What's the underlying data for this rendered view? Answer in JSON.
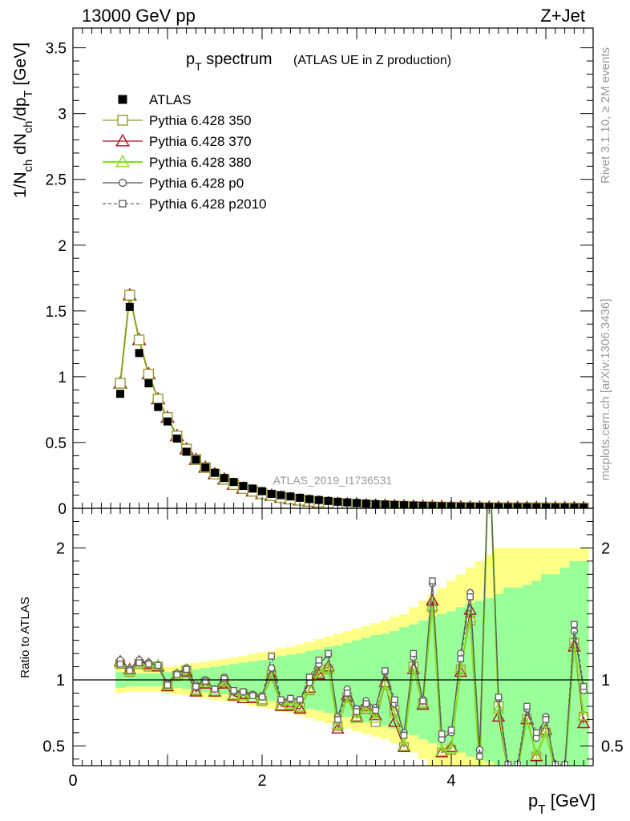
{
  "header": {
    "energy_label": "13000 GeV pp",
    "process_label": "Z+Jet",
    "rivet_label": "Rivet 3.1.10, ≥ 2M events",
    "mcplots_label": "mcplots.cern.ch [arXiv:1306.3436]",
    "analysis_label": "ATLAS_2019_I1736531"
  },
  "colors": {
    "atlas": "#000000",
    "py350": "#999933",
    "py370": "#aa1122",
    "py380": "#88dd22",
    "pyp0": "#555555",
    "pyp2010": "#666666",
    "band_inner": "#99ff99",
    "band_outer": "#ffff88"
  },
  "chart_data": [
    {
      "type": "scatter",
      "title_main": "p_T spectrum",
      "title_sub": "(ATLAS UE in Z production)",
      "ylabel": "1/N_ch dN_ch/dp_T [GeV]",
      "xlim": [
        0,
        5.5
      ],
      "ylim": [
        0,
        3.65
      ],
      "yticks": [
        0,
        0.5,
        1,
        1.5,
        2,
        2.5,
        3,
        3.5
      ],
      "legend_position": "top-left",
      "x": [
        0.5,
        0.6,
        0.7,
        0.8,
        0.9,
        1.0,
        1.1,
        1.2,
        1.3,
        1.4,
        1.5,
        1.6,
        1.7,
        1.8,
        1.9,
        2.0,
        2.1,
        2.2,
        2.3,
        2.4,
        2.5,
        2.6,
        2.7,
        2.8,
        2.9,
        3.0,
        3.1,
        3.2,
        3.3,
        3.4,
        3.5,
        3.6,
        3.7,
        3.8,
        3.9,
        4.0,
        4.1,
        4.2,
        4.3,
        4.4,
        4.5,
        4.6,
        4.7,
        4.8,
        4.9,
        5.0,
        5.1,
        5.2,
        5.3,
        5.4
      ],
      "series": [
        {
          "name": "ATLAS",
          "values": [
            0.87,
            1.53,
            1.18,
            0.95,
            0.77,
            0.66,
            0.53,
            0.43,
            0.37,
            0.31,
            0.27,
            0.23,
            0.2,
            0.17,
            0.15,
            0.13,
            0.11,
            0.1,
            0.09,
            0.08,
            0.07,
            0.063,
            0.056,
            0.05,
            0.045,
            0.04,
            0.036,
            0.032,
            0.029,
            0.026,
            0.023,
            0.021,
            0.019,
            0.017,
            0.016,
            0.014,
            0.013,
            0.012,
            0.011,
            0.01,
            0.009,
            0.0085,
            0.008,
            0.0075,
            0.007,
            0.0065,
            0.006,
            0.0055,
            0.005,
            0.0048
          ]
        },
        {
          "name": "Pythia 6.428 350",
          "values": [
            0.95,
            1.62,
            1.28,
            1.02,
            0.83,
            0.69,
            0.55,
            0.45,
            0.37,
            0.31,
            0.26,
            0.22,
            0.18,
            0.15,
            0.13,
            0.11,
            0.096,
            0.082,
            0.07,
            0.061,
            0.053,
            0.046,
            0.04,
            0.035,
            0.031,
            0.027,
            0.024,
            0.021,
            0.019,
            0.017,
            0.015,
            0.013,
            0.012,
            0.011,
            0.0095,
            0.0085,
            0.0076,
            0.0068,
            0.0061,
            0.0055,
            0.005,
            0.0045,
            0.004,
            0.0036,
            0.0033,
            0.003,
            0.0027,
            0.0025,
            0.0022,
            0.002
          ]
        },
        {
          "name": "Pythia 6.428 370",
          "values": [
            0.95,
            1.62,
            1.28,
            1.02,
            0.83,
            0.69,
            0.55,
            0.45,
            0.37,
            0.31,
            0.26,
            0.22,
            0.18,
            0.15,
            0.13,
            0.11,
            0.096,
            0.082,
            0.07,
            0.061,
            0.053,
            0.046,
            0.04,
            0.035,
            0.031,
            0.027,
            0.024,
            0.021,
            0.019,
            0.017,
            0.015,
            0.013,
            0.012,
            0.011,
            0.0095,
            0.0085,
            0.0076,
            0.0068,
            0.0061,
            0.0055,
            0.005,
            0.0045,
            0.004,
            0.0036,
            0.0033,
            0.003,
            0.0027,
            0.0025,
            0.0022,
            0.002
          ]
        },
        {
          "name": "Pythia 6.428 380",
          "values": [
            0.95,
            1.62,
            1.28,
            1.02,
            0.83,
            0.69,
            0.55,
            0.45,
            0.37,
            0.31,
            0.26,
            0.22,
            0.18,
            0.15,
            0.13,
            0.11,
            0.096,
            0.082,
            0.07,
            0.061,
            0.053,
            0.046,
            0.04,
            0.035,
            0.031,
            0.027,
            0.024,
            0.021,
            0.019,
            0.017,
            0.015,
            0.013,
            0.012,
            0.011,
            0.0095,
            0.0085,
            0.0076,
            0.0068,
            0.0061,
            0.0055,
            0.005,
            0.0045,
            0.004,
            0.0036,
            0.0033,
            0.003,
            0.0027,
            0.0025,
            0.0022,
            0.002
          ]
        },
        {
          "name": "Pythia 6.428 p0",
          "values": [
            0.95,
            1.62,
            1.28,
            1.02,
            0.83,
            0.69,
            0.55,
            0.45,
            0.37,
            0.31,
            0.26,
            0.22,
            0.18,
            0.15,
            0.13,
            0.11,
            0.096,
            0.082,
            0.07,
            0.061,
            0.053,
            0.046,
            0.04,
            0.035,
            0.031,
            0.027,
            0.024,
            0.021,
            0.019,
            0.017,
            0.015,
            0.013,
            0.012,
            0.011,
            0.0095,
            0.0085,
            0.0076,
            0.0068,
            0.0061,
            0.0055,
            0.005,
            0.0045,
            0.004,
            0.0036,
            0.0033,
            0.003,
            0.0027,
            0.0025,
            0.0022,
            0.002
          ]
        },
        {
          "name": "Pythia 6.428 p2010",
          "values": [
            0.95,
            1.62,
            1.28,
            1.02,
            0.83,
            0.69,
            0.55,
            0.45,
            0.37,
            0.31,
            0.26,
            0.22,
            0.18,
            0.15,
            0.13,
            0.11,
            0.096,
            0.082,
            0.07,
            0.061,
            0.053,
            0.046,
            0.04,
            0.035,
            0.031,
            0.027,
            0.024,
            0.021,
            0.019,
            0.017,
            0.015,
            0.013,
            0.012,
            0.011,
            0.0095,
            0.0085,
            0.0076,
            0.0068,
            0.0061,
            0.0055,
            0.005,
            0.0045,
            0.004,
            0.0036,
            0.0033,
            0.003,
            0.0027,
            0.0025,
            0.0022,
            0.002
          ]
        }
      ]
    },
    {
      "type": "line",
      "ylabel": "Ratio to ATLAS",
      "xlabel": "p_T [GeV]",
      "xlim": [
        0,
        5.5
      ],
      "ylim": [
        0.35,
        2.3
      ],
      "xticks": [
        0,
        2,
        4
      ],
      "yticks": [
        0.5,
        1,
        2
      ],
      "x": [
        0.5,
        0.6,
        0.7,
        0.8,
        0.9,
        1.0,
        1.1,
        1.2,
        1.3,
        1.4,
        1.5,
        1.6,
        1.7,
        1.8,
        1.9,
        2.0,
        2.1,
        2.2,
        2.3,
        2.4,
        2.5,
        2.6,
        2.7,
        2.8,
        2.9,
        3.0,
        3.1,
        3.2,
        3.3,
        3.4,
        3.5,
        3.6,
        3.7,
        3.8,
        3.9,
        4.0,
        4.1,
        4.2,
        4.3,
        4.4,
        4.5,
        4.6,
        4.7,
        4.8,
        4.9,
        5.0,
        5.1,
        5.2,
        5.3,
        5.4
      ],
      "band_inner": [
        0.06,
        0.05,
        0.05,
        0.05,
        0.05,
        0.06,
        0.06,
        0.07,
        0.08,
        0.09,
        0.1,
        0.11,
        0.12,
        0.13,
        0.14,
        0.15,
        0.16,
        0.18,
        0.19,
        0.2,
        0.22,
        0.23,
        0.25,
        0.26,
        0.28,
        0.3,
        0.32,
        0.34,
        0.35,
        0.37,
        0.4,
        0.42,
        0.45,
        0.48,
        0.5,
        0.52,
        0.55,
        0.58,
        0.6,
        0.62,
        0.65,
        0.7,
        0.7,
        0.72,
        0.75,
        0.8,
        0.8,
        0.85,
        0.9,
        0.9
      ],
      "band_outer": [
        0.1,
        0.09,
        0.09,
        0.09,
        0.09,
        0.1,
        0.11,
        0.12,
        0.13,
        0.14,
        0.15,
        0.16,
        0.17,
        0.18,
        0.2,
        0.21,
        0.22,
        0.24,
        0.25,
        0.27,
        0.29,
        0.31,
        0.33,
        0.35,
        0.37,
        0.39,
        0.41,
        0.43,
        0.45,
        0.48,
        0.5,
        0.55,
        0.6,
        0.65,
        0.7,
        0.75,
        0.8,
        0.85,
        0.9,
        0.95,
        1.0,
        1.0,
        1.0,
        1.0,
        1.0,
        1.0,
        1.0,
        1.0,
        1.0,
        1.0
      ],
      "series": [
        {
          "name": "Pythia 6.428 350",
          "values": [
            1.12,
            1.06,
            1.12,
            1.1,
            1.1,
            0.96,
            1.03,
            1.07,
            0.92,
            0.98,
            0.91,
            0.98,
            0.88,
            0.89,
            0.87,
            0.84,
            1.04,
            0.8,
            0.81,
            0.79,
            0.92,
            1.05,
            1.08,
            0.65,
            0.87,
            0.71,
            0.78,
            0.68,
            0.96,
            0.77,
            0.49,
            1.1,
            0.82,
            1.55,
            0.45,
            0.47,
            1.08,
            1.45,
            0.3,
            2.8,
            0.8,
            0.3,
            0.3,
            0.7,
            0.42,
            0.6,
            0.3,
            0.3,
            1.28,
            0.72
          ]
        },
        {
          "name": "Pythia 6.428 370",
          "values": [
            1.14,
            1.08,
            1.14,
            1.12,
            1.1,
            0.95,
            1.04,
            1.06,
            0.91,
            0.97,
            0.91,
            0.97,
            0.88,
            0.86,
            0.86,
            0.85,
            1.03,
            0.8,
            0.8,
            0.78,
            0.94,
            1.04,
            1.1,
            0.63,
            0.88,
            0.72,
            0.8,
            0.73,
            0.98,
            0.68,
            0.49,
            1.08,
            0.81,
            1.6,
            0.45,
            0.49,
            1.06,
            1.53,
            0.3,
            2.8,
            0.72,
            0.3,
            0.3,
            0.7,
            0.42,
            0.62,
            0.3,
            0.3,
            1.25,
            0.67
          ]
        },
        {
          "name": "Pythia 6.428 380",
          "values": [
            1.13,
            1.07,
            1.13,
            1.11,
            1.11,
            0.96,
            1.04,
            1.08,
            0.93,
            0.98,
            0.92,
            0.99,
            0.89,
            0.88,
            0.87,
            0.85,
            1.05,
            0.81,
            0.82,
            0.8,
            0.93,
            1.06,
            1.09,
            0.66,
            0.86,
            0.71,
            0.79,
            0.71,
            0.97,
            0.75,
            0.5,
            1.09,
            0.83,
            1.56,
            0.46,
            0.48,
            1.09,
            1.47,
            0.31,
            2.8,
            0.78,
            0.31,
            0.31,
            0.71,
            0.43,
            0.61,
            0.31,
            0.31,
            1.27,
            0.73
          ]
        },
        {
          "name": "Pythia 6.428 p0",
          "values": [
            1.15,
            1.08,
            1.15,
            1.13,
            1.11,
            0.97,
            1.05,
            1.09,
            0.96,
            1.0,
            0.93,
            1.02,
            0.91,
            0.91,
            0.89,
            0.88,
            1.09,
            0.84,
            0.86,
            0.85,
            0.98,
            1.12,
            1.19,
            0.72,
            0.93,
            0.78,
            0.84,
            0.79,
            1.06,
            0.82,
            0.6,
            1.17,
            0.85,
            1.73,
            0.55,
            0.6,
            1.2,
            1.66,
            0.47,
            2.8,
            0.86,
            0.33,
            0.33,
            0.78,
            0.56,
            0.72,
            0.33,
            0.33,
            1.37,
            0.92
          ]
        },
        {
          "name": "Pythia 6.428 p2010",
          "values": [
            1.12,
            1.07,
            1.13,
            1.12,
            1.11,
            0.96,
            1.04,
            1.08,
            0.95,
            0.99,
            0.93,
            1.01,
            0.92,
            0.91,
            0.88,
            0.87,
            1.18,
            0.85,
            0.86,
            0.85,
            1.02,
            1.15,
            1.2,
            0.7,
            0.9,
            0.76,
            0.82,
            0.77,
            1.07,
            0.85,
            0.58,
            1.2,
            0.84,
            1.75,
            0.59,
            0.62,
            1.16,
            1.63,
            0.42,
            2.8,
            0.87,
            0.36,
            0.36,
            0.8,
            0.6,
            0.7,
            0.36,
            0.36,
            1.42,
            0.95
          ]
        }
      ]
    }
  ]
}
